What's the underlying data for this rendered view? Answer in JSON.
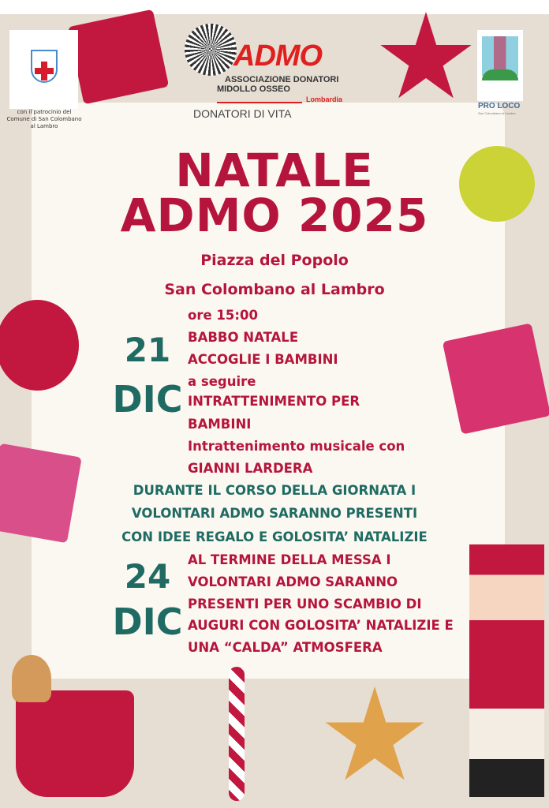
{
  "logos": {
    "comune_caption": "con il patrocinio del Comune di San Colombano al Lambro",
    "admo_name": "ADMO",
    "admo_full_line1": "ASSOCIAZIONE DONATORI",
    "admo_full_line2": "MIDOLLO OSSEO",
    "admo_region": "Lombardia",
    "admo_tagline": "DONATORI DI VITA",
    "proloco_name": "PRO LOCO",
    "proloco_sub": "San Colombano al Lambro"
  },
  "title": {
    "line1": "NATALE",
    "line2": "ADMO 2025"
  },
  "location": {
    "line1": "Piazza del Popolo",
    "line2": "San Colombano al Lambro"
  },
  "event1": {
    "day": "21",
    "month": "DIC",
    "lines": [
      "ore 15:00",
      "BABBO NATALE",
      "ACCOGLIE I BAMBINI",
      "a seguire",
      "INTRATTENIMENTO PER",
      "BAMBINI",
      "Intrattenimento musicale con",
      "GIANNI LARDERA"
    ]
  },
  "during": [
    "DURANTE IL CORSO DELLA GIORNATA I",
    "VOLONTARI ADMO SARANNO PRESENTI",
    "CON IDEE REGALO E GOLOSITA’ NATALIZIE"
  ],
  "event2": {
    "day": "24",
    "month": "DIC",
    "lines": [
      "AL TERMINE DELLA MESSA I",
      "VOLONTARI ADMO SARANNO",
      "PRESENTI PER UNO SCAMBIO DI",
      "AUGURI CON GOLOSITA’ NATALIZIE E",
      "UNA “CALDA” ATMOSFERA"
    ]
  },
  "colors": {
    "red": "#b5153c",
    "teal": "#1f6b63",
    "cream": "#fbf8f1"
  }
}
